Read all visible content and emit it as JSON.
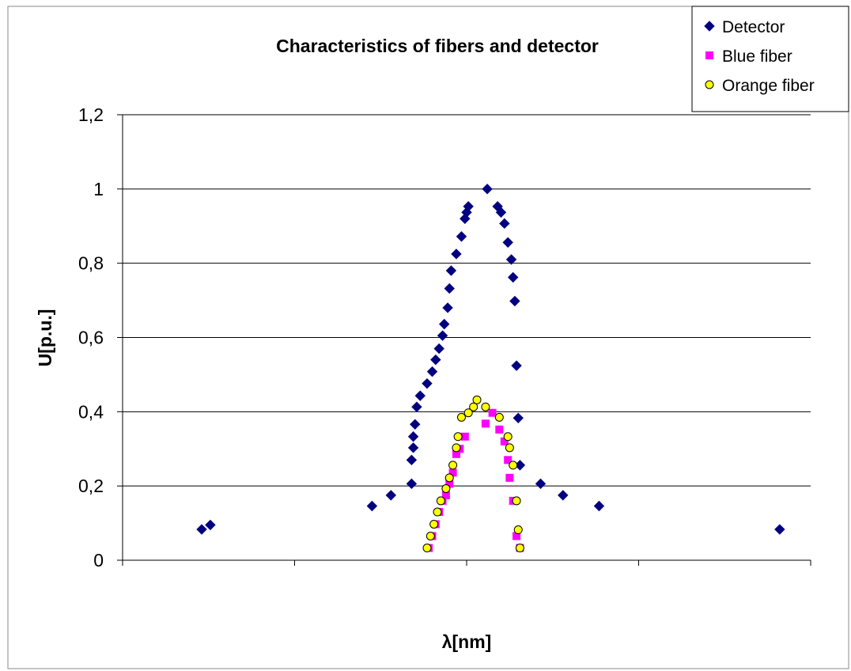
{
  "chart_data": {
    "type": "scatter",
    "title": "Characteristics of fibers and detector",
    "xlabel": "λ[nm]",
    "ylabel": "U[p.u.]",
    "xlim": [
      0,
      4
    ],
    "ylim": [
      0,
      1.2
    ],
    "x_ticks_labeled": false,
    "y_ticks": [
      {
        "value": 0,
        "label": "0"
      },
      {
        "value": 0.2,
        "label": "0,2"
      },
      {
        "value": 0.4,
        "label": "0,4"
      },
      {
        "value": 0.6,
        "label": "0,6"
      },
      {
        "value": 0.8,
        "label": "0,8"
      },
      {
        "value": 1.0,
        "label": "1"
      },
      {
        "value": 1.2,
        "label": "1,2"
      }
    ],
    "grid": "horizontal",
    "legend_position": "top-right",
    "series": [
      {
        "name": "Detector",
        "marker": "diamond",
        "color": "#000080",
        "points": [
          [
            0.46,
            0.083
          ],
          [
            0.51,
            0.095
          ],
          [
            1.45,
            0.146
          ],
          [
            1.56,
            0.175
          ],
          [
            1.68,
            0.206
          ],
          [
            1.68,
            0.27
          ],
          [
            1.69,
            0.303
          ],
          [
            1.69,
            0.333
          ],
          [
            1.7,
            0.366
          ],
          [
            1.71,
            0.413
          ],
          [
            1.73,
            0.443
          ],
          [
            1.77,
            0.476
          ],
          [
            1.8,
            0.508
          ],
          [
            1.82,
            0.54
          ],
          [
            1.84,
            0.57
          ],
          [
            1.86,
            0.605
          ],
          [
            1.87,
            0.636
          ],
          [
            1.89,
            0.68
          ],
          [
            1.9,
            0.732
          ],
          [
            1.91,
            0.78
          ],
          [
            1.94,
            0.825
          ],
          [
            1.97,
            0.872
          ],
          [
            1.99,
            0.92
          ],
          [
            2.0,
            0.937
          ],
          [
            2.01,
            0.953
          ],
          [
            2.12,
            1.0
          ],
          [
            2.18,
            0.953
          ],
          [
            2.2,
            0.937
          ],
          [
            2.22,
            0.907
          ],
          [
            2.24,
            0.856
          ],
          [
            2.26,
            0.81
          ],
          [
            2.27,
            0.762
          ],
          [
            2.28,
            0.698
          ],
          [
            2.29,
            0.524
          ],
          [
            2.3,
            0.383
          ],
          [
            2.31,
            0.256
          ],
          [
            2.43,
            0.206
          ],
          [
            2.56,
            0.175
          ],
          [
            2.77,
            0.146
          ],
          [
            3.82,
            0.083
          ]
        ]
      },
      {
        "name": "Blue fiber",
        "marker": "square",
        "color": "#FF00FF",
        "points": [
          [
            1.78,
            0.033
          ],
          [
            1.8,
            0.065
          ],
          [
            1.82,
            0.097
          ],
          [
            1.84,
            0.13
          ],
          [
            1.86,
            0.16
          ],
          [
            1.88,
            0.175
          ],
          [
            1.9,
            0.206
          ],
          [
            1.92,
            0.236
          ],
          [
            1.94,
            0.286
          ],
          [
            1.96,
            0.3
          ],
          [
            1.99,
            0.333
          ],
          [
            2.11,
            0.368
          ],
          [
            2.15,
            0.397
          ],
          [
            2.19,
            0.352
          ],
          [
            2.22,
            0.32
          ],
          [
            2.24,
            0.27
          ],
          [
            2.25,
            0.222
          ],
          [
            2.27,
            0.16
          ],
          [
            2.29,
            0.065
          ],
          [
            2.31,
            0.033
          ]
        ]
      },
      {
        "name": "Orange fiber",
        "marker": "circle",
        "color": "#FFFF00",
        "points": [
          [
            1.77,
            0.033
          ],
          [
            1.79,
            0.065
          ],
          [
            1.81,
            0.097
          ],
          [
            1.83,
            0.13
          ],
          [
            1.85,
            0.16
          ],
          [
            1.88,
            0.193
          ],
          [
            1.9,
            0.222
          ],
          [
            1.92,
            0.256
          ],
          [
            1.94,
            0.303
          ],
          [
            1.95,
            0.333
          ],
          [
            1.97,
            0.385
          ],
          [
            2.01,
            0.397
          ],
          [
            2.04,
            0.413
          ],
          [
            2.06,
            0.432
          ],
          [
            2.11,
            0.413
          ],
          [
            2.19,
            0.385
          ],
          [
            2.24,
            0.333
          ],
          [
            2.25,
            0.303
          ],
          [
            2.27,
            0.256
          ],
          [
            2.29,
            0.16
          ],
          [
            2.3,
            0.082
          ],
          [
            2.31,
            0.033
          ]
        ]
      }
    ]
  }
}
